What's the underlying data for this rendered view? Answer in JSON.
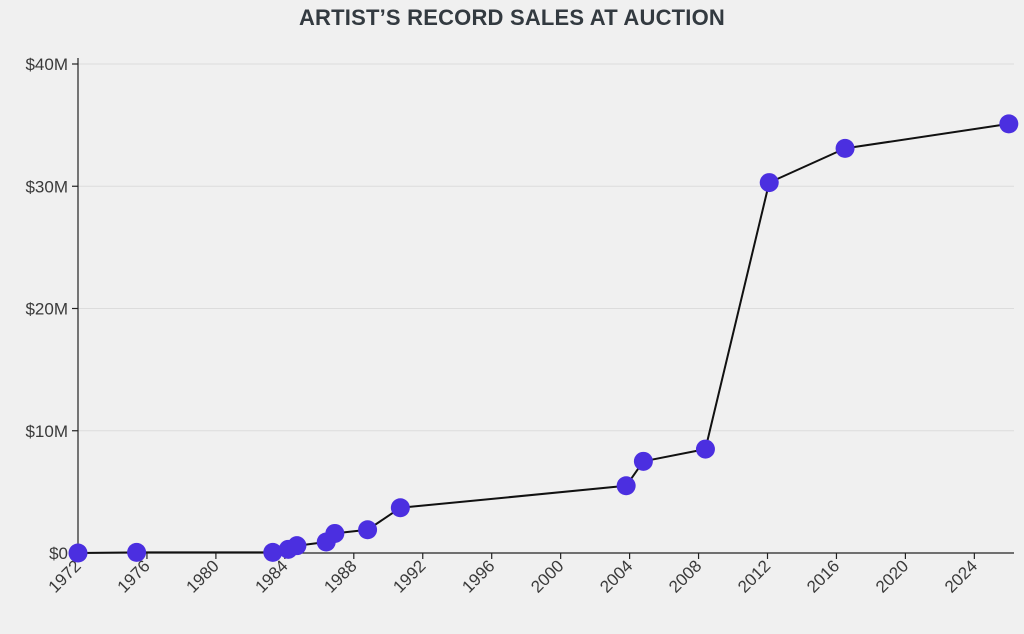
{
  "chart_data": {
    "type": "line",
    "title": "ARTIST’S RECORD SALES AT AUCTION",
    "xlabel": "",
    "ylabel": "",
    "xlim": [
      1972,
      2026.3
    ],
    "ylim": [
      0,
      40
    ],
    "x_ticks": [
      1972,
      1976,
      1980,
      1984,
      1988,
      1992,
      1996,
      2000,
      2004,
      2008,
      2012,
      2016,
      2020,
      2024
    ],
    "y_ticks": [
      {
        "value": 0,
        "label": "$0"
      },
      {
        "value": 10,
        "label": "$10M"
      },
      {
        "value": 20,
        "label": "$20M"
      },
      {
        "value": 30,
        "label": "$30M"
      },
      {
        "value": 40,
        "label": "$40M"
      }
    ],
    "grid": "horizontal",
    "series": [
      {
        "x": [
          1972.0,
          1975.4,
          1983.3,
          1984.2,
          1984.7,
          1986.4,
          1986.9,
          1988.8,
          1990.7,
          2003.8,
          2004.8,
          2008.4,
          2012.1,
          2016.5,
          2026.0
        ],
        "y": [
          0.0,
          0.05,
          0.05,
          0.3,
          0.6,
          0.9,
          1.6,
          1.9,
          3.7,
          5.5,
          7.5,
          8.5,
          30.3,
          33.1,
          35.1
        ]
      }
    ],
    "colors": {
      "line": "#111111",
      "marker": "#4b2fe0",
      "grid": "#dcdcdc",
      "axis": "#222222"
    }
  }
}
